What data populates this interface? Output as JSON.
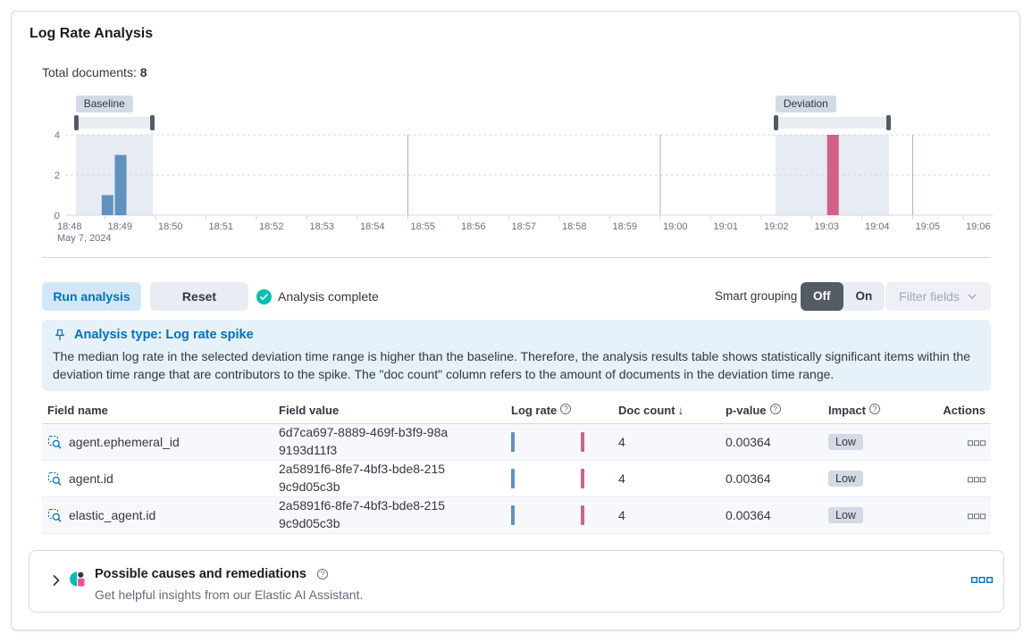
{
  "header": {
    "title": "Log Rate Analysis",
    "total_documents_label": "Total documents:",
    "total_documents_value": "8"
  },
  "chart_data": {
    "type": "bar",
    "title": "document count histogram",
    "x_date": "May 7, 2024",
    "x_ticks": [
      "18:48",
      "18:49",
      "18:50",
      "18:51",
      "18:52",
      "18:53",
      "18:54",
      "18:55",
      "18:56",
      "18:57",
      "18:58",
      "18:59",
      "19:00",
      "19:01",
      "19:02",
      "19:03",
      "19:04",
      "19:05",
      "19:06"
    ],
    "y_ticks": [
      0,
      2,
      4
    ],
    "ylim": [
      0,
      4
    ],
    "grid": "dashed horizontal at 2 and 4, solid vertical at 18:55 / 19:00 / 19:05",
    "vertical_gridline_offsets": [
      7,
      12,
      17
    ],
    "series": [
      {
        "name": "baseline",
        "color": "#6092c0",
        "points": [
          {
            "time": "18:49",
            "minute_offset": 1.05,
            "count": 1
          },
          {
            "time": "18:49",
            "minute_offset": 1.31,
            "count": 3
          }
        ]
      },
      {
        "name": "deviation",
        "color": "#d36086",
        "points": [
          {
            "time": "19:03",
            "minute_offset": 15.42,
            "count": 4
          }
        ]
      }
    ],
    "windows": [
      {
        "name": "Baseline",
        "start_offset": 0.42,
        "end_offset": 1.95
      },
      {
        "name": "Deviation",
        "start_offset": 14.28,
        "end_offset": 16.53
      }
    ],
    "window_fill": "#e7ebf4"
  },
  "controls": {
    "run_analysis": "Run analysis",
    "reset": "Reset",
    "status": "Analysis complete",
    "smart_grouping_label": "Smart grouping",
    "off": "Off",
    "on": "On",
    "filter_fields": "Filter fields"
  },
  "callout": {
    "title": "Analysis type: Log rate spike",
    "body": "The median log rate in the selected deviation time range is higher than the baseline. Therefore, the analysis results table shows statistically significant items within the deviation time range that are contributors to the spike. The \"doc count\" column refers to the amount of documents in the deviation time range."
  },
  "table": {
    "columns": [
      {
        "label": "Field name"
      },
      {
        "label": "Field value"
      },
      {
        "label": "Log rate",
        "help": true
      },
      {
        "label": "Doc count",
        "sorted": "desc"
      },
      {
        "label": "p-value",
        "help": true
      },
      {
        "label": "Impact",
        "help": true
      },
      {
        "label": "Actions"
      }
    ],
    "rows": [
      {
        "field_name": "agent.ephemeral_id",
        "field_value": "6d7ca697-8889-469f-b3f9-98a9193d11f3",
        "doc_count": "4",
        "p_value": "0.00364",
        "impact": "Low"
      },
      {
        "field_name": "agent.id",
        "field_value": "2a5891f6-8fe7-4bf3-bde8-2159c9d05c3b",
        "doc_count": "4",
        "p_value": "0.00364",
        "impact": "Low"
      },
      {
        "field_name": "elastic_agent.id",
        "field_value": "2a5891f6-8fe7-4bf3-bde8-2159c9d05c3b",
        "doc_count": "4",
        "p_value": "0.00364",
        "impact": "Low"
      }
    ]
  },
  "footer": {
    "title": "Possible causes and remediations",
    "subtitle": "Get helpful insights from our Elastic AI Assistant."
  },
  "colors": {
    "primary": "#0071c2",
    "teal": "#00bfb3",
    "pink": "#f04e98",
    "bar_blue": "#6092c0",
    "bar_pink": "#d36086",
    "badge_bg": "#d3dae6"
  }
}
